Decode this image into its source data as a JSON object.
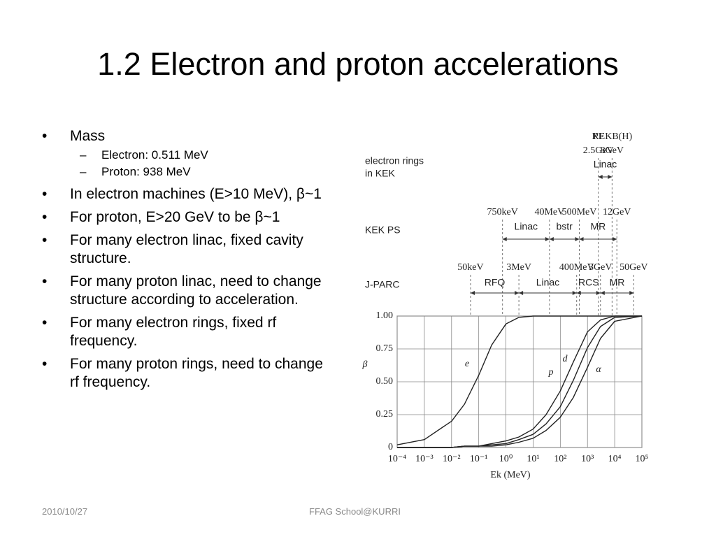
{
  "title": "1.2 Electron and proton accelerations",
  "bullets": [
    {
      "text": "Mass",
      "sub": [
        "Electron: 0.511 MeV",
        "Proton: 938 MeV"
      ]
    },
    {
      "text": "In electron machines (E>10 MeV), β~1"
    },
    {
      "text": "For proton, E>20 GeV to be β~1"
    },
    {
      "text": "For many electron linac, fixed cavity structure."
    },
    {
      "text": "For many proton linac, need to change  structure according to acceleration."
    },
    {
      "text": "For many electron rings, fixed rf frequency."
    },
    {
      "text": "For many proton rings, need to change rf frequency."
    }
  ],
  "footer": {
    "date": "2010/10/27",
    "center": "FFAG School@KURRI"
  },
  "figure": {
    "type": "line",
    "log_x": true,
    "grid": true,
    "xlabel": "Ek (MeV)",
    "ylabel": "β",
    "xlim": [
      0.0001,
      100000
    ],
    "xticks": [
      {
        "value": 0.0001,
        "label": "10⁻⁴"
      },
      {
        "value": 0.001,
        "label": "10⁻³"
      },
      {
        "value": 0.01,
        "label": "10⁻²"
      },
      {
        "value": 0.1,
        "label": "10⁻¹"
      },
      {
        "value": 1,
        "label": "10⁰"
      },
      {
        "value": 10,
        "label": "10¹"
      },
      {
        "value": 100,
        "label": "10²"
      },
      {
        "value": 1000,
        "label": "10³"
      },
      {
        "value": 10000,
        "label": "10⁴"
      },
      {
        "value": 100000,
        "label": "10⁵"
      }
    ],
    "ylim": [
      0,
      1
    ],
    "yticks": [
      0,
      0.25,
      {
        "value": 0.5,
        "label": "0.50"
      },
      0.75,
      {
        "value": 1,
        "label": "1.00"
      }
    ],
    "x": [
      0.0001,
      0.001,
      0.01,
      0.03,
      0.1,
      0.3,
      1,
      3,
      10,
      30,
      100,
      300,
      1000,
      3000,
      10000,
      100000
    ],
    "series": [
      {
        "name": "e",
        "color": "#222222",
        "values": [
          0.02,
          0.06,
          0.2,
          0.33,
          0.55,
          0.78,
          0.94,
          0.99,
          1,
          1,
          1,
          1,
          1,
          1,
          1,
          1
        ]
      },
      {
        "name": "p",
        "color": "#222222",
        "values": [
          0,
          0,
          0,
          0.01,
          0.01,
          0.03,
          0.05,
          0.08,
          0.14,
          0.25,
          0.43,
          0.65,
          0.88,
          0.97,
          1,
          1
        ]
      },
      {
        "name": "d",
        "color": "#222222",
        "values": [
          0,
          0,
          0,
          0.01,
          0.01,
          0.02,
          0.03,
          0.06,
          0.1,
          0.18,
          0.31,
          0.51,
          0.76,
          0.92,
          0.99,
          1
        ]
      },
      {
        "name": "α",
        "color": "#222222",
        "values": [
          0,
          0,
          0,
          0.01,
          0.01,
          0.01,
          0.02,
          0.04,
          0.07,
          0.13,
          0.23,
          0.38,
          0.61,
          0.83,
          0.96,
          1
        ]
      }
    ],
    "machines": [
      {
        "label": [
          "electron rings",
          "in KEK"
        ],
        "markers": [
          {
            "value": 2500,
            "name": "PF",
            "label": "2.5GeV"
          },
          {
            "value": 8000,
            "name": "KEKB(H)",
            "label": "8GeV"
          }
        ],
        "stages": [
          "Linac"
        ]
      },
      {
        "label": [
          "KEK PS"
        ],
        "markers": [
          {
            "value": 0.75,
            "label": "750keV"
          },
          {
            "value": 40,
            "label": "40MeV"
          },
          {
            "value": 500,
            "label": "500MeV"
          },
          {
            "value": 12000,
            "label": "12GeV"
          }
        ],
        "stages": [
          "Linac",
          "bstr",
          "MR"
        ]
      },
      {
        "label": [
          "J-PARC"
        ],
        "markers": [
          {
            "value": 0.05,
            "label": "50keV"
          },
          {
            "value": 3,
            "label": "3MeV"
          },
          {
            "value": 400,
            "label": "400MeV"
          },
          {
            "value": 3000,
            "label": "3GeV"
          },
          {
            "value": 50000,
            "label": "50GeV"
          }
        ],
        "stages": [
          "RFQ",
          "Linac",
          "RCS",
          "MR"
        ]
      }
    ]
  }
}
